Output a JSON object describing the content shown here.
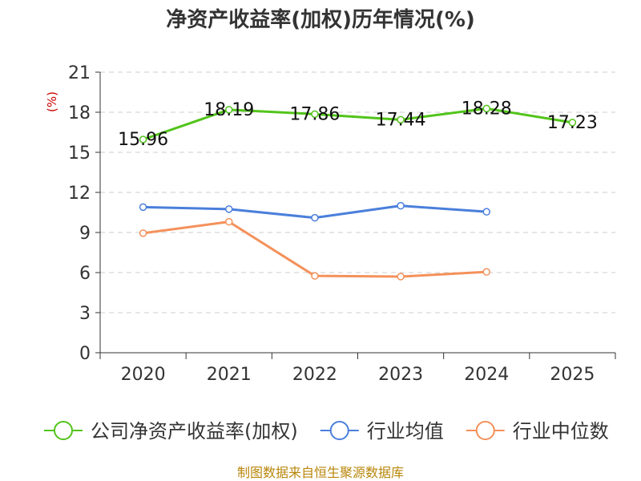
{
  "chart_data": {
    "type": "line",
    "title": "净资产收益率(加权)历年情况(%)",
    "ylabel": "(%)",
    "xlabel": "",
    "categories": [
      "2020",
      "2021",
      "2022",
      "2023",
      "2024",
      "2025"
    ],
    "ylim": [
      0,
      21
    ],
    "yticks": [
      0,
      3,
      6,
      9,
      12,
      15,
      18,
      21
    ],
    "grid": true,
    "legend_position": "bottom",
    "series": [
      {
        "name": "公司净资产收益率(加权)",
        "color": "#52c41a",
        "values": [
          15.96,
          18.19,
          17.86,
          17.44,
          18.28,
          17.23
        ],
        "labels": [
          "15.96",
          "18.19",
          "17.86",
          "17.44",
          "18.28",
          "17.23"
        ]
      },
      {
        "name": "行业均值",
        "color": "#4a7fdb",
        "values": [
          10.9,
          10.75,
          10.1,
          11.0,
          10.55,
          null
        ]
      },
      {
        "name": "行业中位数",
        "color": "#f4915b",
        "values": [
          8.95,
          9.8,
          5.75,
          5.7,
          6.05,
          null
        ]
      }
    ]
  },
  "source": "制图数据来自恒生聚源数据库"
}
